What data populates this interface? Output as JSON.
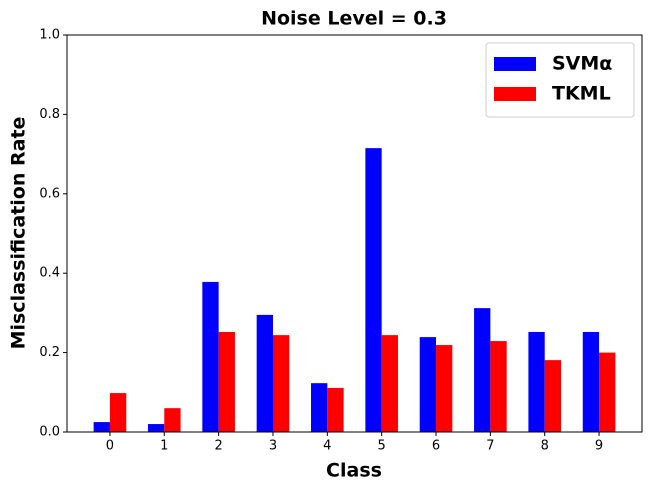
{
  "chart_data": {
    "type": "bar",
    "title": "Noise Level = 0.3",
    "x_label": "Class",
    "y_label": "Misclassification Rate",
    "categories": [
      "0",
      "1",
      "2",
      "3",
      "4",
      "5",
      "6",
      "7",
      "8",
      "9"
    ],
    "series": [
      {
        "name": "SVMα",
        "color": "#0000ff",
        "values": [
          0.025,
          0.02,
          0.378,
          0.295,
          0.123,
          0.715,
          0.239,
          0.312,
          0.252,
          0.252
        ]
      },
      {
        "name": "TKML",
        "color": "#ff0000",
        "values": [
          0.098,
          0.06,
          0.252,
          0.244,
          0.111,
          0.244,
          0.219,
          0.229,
          0.181,
          0.2
        ]
      }
    ],
    "ylim": [
      0,
      1
    ],
    "yticks": [
      {
        "value": 0,
        "label": "0.0"
      },
      0.2,
      0.4,
      0.6,
      0.8,
      {
        "value": 1,
        "label": "1.0"
      }
    ],
    "legend": "upper right",
    "grid": false
  }
}
